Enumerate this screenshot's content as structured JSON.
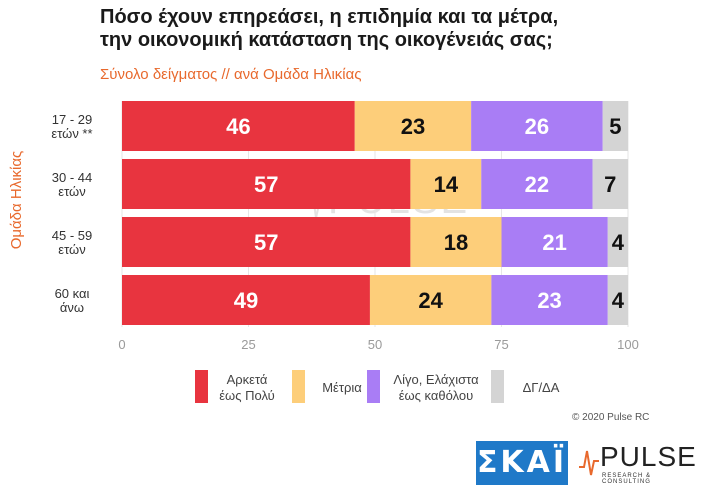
{
  "header": {
    "title_line1": "Πόσο έχουν επηρεάσει, η επιδημία και τα μέτρα,",
    "title_line2": "την οικονομική κατάσταση της οικογένειάς σας;",
    "subtitle": "Σύνολο δείγματος // ανά Ομάδα Ηλικίας"
  },
  "chart_data": {
    "type": "bar",
    "orientation": "horizontal",
    "stacked": true,
    "categories": [
      "17 - 29 ετών **",
      "30 - 44 ετών",
      "45 - 59 ετών",
      "60 και άνω"
    ],
    "category_lines": [
      [
        "17 - 29",
        "ετών **"
      ],
      [
        "30 - 44",
        "ετών"
      ],
      [
        "45 - 59",
        "ετών"
      ],
      [
        "60 και",
        "άνω"
      ]
    ],
    "series": [
      {
        "name": "Αρκετά έως Πολύ",
        "color": "#e8343f",
        "label_color": "#ffffff",
        "values": [
          46,
          57,
          57,
          49
        ]
      },
      {
        "name": "Μέτρια",
        "color": "#fdce7a",
        "label_color": "#111111",
        "values": [
          23,
          14,
          18,
          24
        ]
      },
      {
        "name": "Λίγο, Ελάχιστα έως καθόλου",
        "color": "#a97df5",
        "label_color": "#ffffff",
        "values": [
          26,
          22,
          21,
          23
        ]
      },
      {
        "name": "ΔΓ/ΔΑ",
        "color": "#d4d4d4",
        "label_color": "#111111",
        "values": [
          5,
          7,
          4,
          4
        ]
      }
    ],
    "xlim": [
      0,
      100
    ],
    "xticks": [
      "0",
      "25",
      "50",
      "75",
      "100"
    ],
    "ylabel": "Ομάδα Ηλικίας",
    "grid": true,
    "legend_position": "bottom"
  },
  "legend": [
    {
      "line1": "Αρκετά",
      "line2": "έως Πολύ"
    },
    {
      "line1": "Μέτρια",
      "line2": ""
    },
    {
      "line1": "Λίγο, Ελάχιστα",
      "line2": "έως καθόλου"
    },
    {
      "line1": "ΔΓ/ΔΑ",
      "line2": ""
    }
  ],
  "footer": {
    "copyright": "© 2020 Pulse RC",
    "skai_logo": "ΣΚΑΪ",
    "pulse_logo": "PULSE",
    "pulse_sub": "RESEARCH & CONSULTING"
  },
  "watermark": {
    "name": "PULSE",
    "sub": "RESEARCH & CONSULTING"
  }
}
